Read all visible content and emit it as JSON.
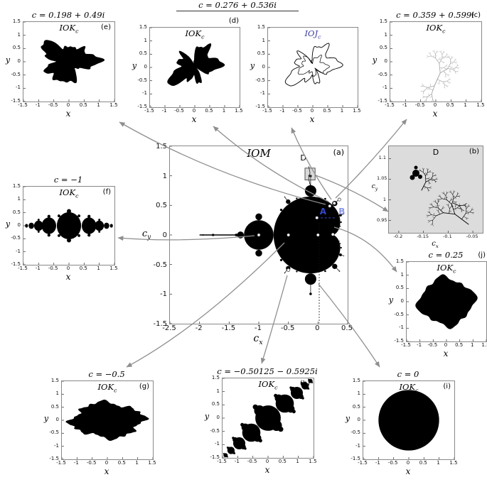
{
  "shared_title": "c = 0.276 + 0.536i",
  "colors": {
    "accent_blue": "#3748c8",
    "accent_blue_light": "#8a97e8",
    "ioj_label": "#3b3b9e",
    "arrow": "#8f8f8f",
    "dendrite_gray": "#a6a6a6",
    "panel_b_bg": "#dcdcdc",
    "set_fill": "#000000"
  },
  "chart_data": [
    {
      "id": "e",
      "type": "area",
      "title": "c = 0.198 + 0.49i",
      "set_label": "IOK_c",
      "letter": "(e)",
      "c_value": [
        0.198,
        0.49
      ],
      "xlabel": "x",
      "ylabel": "y",
      "xlim": [
        -1.5,
        1.5
      ],
      "ylim": [
        -1.5,
        1.5
      ],
      "xticks": [
        "-1.5",
        "-1",
        "-0.5",
        "0",
        "0.5",
        "1",
        "1.5"
      ],
      "yticks": [
        "1.5",
        "1",
        "0.5",
        "0",
        "-0.5",
        "-1",
        "-1.5"
      ]
    },
    {
      "id": "d",
      "type": "area",
      "title": "",
      "set_label": "IOK_c",
      "letter": "(d)",
      "c_value": [
        0.276,
        0.536
      ],
      "xlabel": "x",
      "ylabel": "y",
      "xlim": [
        -1.5,
        1.5
      ],
      "ylim": [
        -1.5,
        1.5
      ],
      "xticks": [
        "-1.5",
        "-1",
        "-0.5",
        "0",
        "0.5",
        "1",
        "1.5"
      ],
      "yticks": [
        "1.5",
        "1",
        "0.5",
        "0",
        "-0.5",
        "-1",
        "-1.5"
      ]
    },
    {
      "id": "ioj",
      "type": "area",
      "title": "",
      "set_label": "IOJ_c",
      "letter": "",
      "c_value": [
        0.276,
        0.536
      ],
      "xlabel": "x",
      "ylabel": "y",
      "xlim": [
        -1.5,
        1.5
      ],
      "ylim": [
        -1.5,
        1.5
      ],
      "xticks": [
        "-1.5",
        "-1",
        "-0.5",
        "0",
        "0.5",
        "1",
        "1.5"
      ],
      "yticks": [
        "1.5",
        "1",
        "0.5",
        "0",
        "-0.5",
        "-1",
        "-1.5"
      ]
    },
    {
      "id": "c",
      "type": "area",
      "title": "c = 0.359 + 0.599i",
      "set_label": "IOK_c",
      "letter": "(c)",
      "c_value": [
        0.359,
        0.599
      ],
      "xlabel": "x",
      "ylabel": "y",
      "xlim": [
        -1.5,
        1.5
      ],
      "ylim": [
        -1.5,
        1.5
      ],
      "xticks": [
        "-1.5",
        "-1",
        "-0.5",
        "0",
        "0.5",
        "1",
        "1.5"
      ],
      "yticks": [
        "1.5",
        "1",
        "0.5",
        "0",
        "-0.5",
        "-1",
        "-1.5"
      ]
    },
    {
      "id": "a",
      "type": "area",
      "title": "",
      "set_label": "IOM",
      "letter": "(a)",
      "xlabel": "c_x",
      "ylabel": "c_y",
      "xlim": [
        -2.5,
        0.5
      ],
      "ylim": [
        -1.5,
        1.5
      ],
      "xticks": [
        "-2.5",
        "-2",
        "-1.5",
        "-1",
        "-0.5",
        "0",
        "0.5"
      ],
      "yticks": [
        "1.5",
        "1",
        "0.5",
        "0",
        "-0.5",
        "-1",
        "-1.5"
      ],
      "region_box": {
        "label": "D",
        "x": [
          -0.22,
          -0.05
        ],
        "y": [
          0.93,
          1.13
        ]
      },
      "points": {
        "A": {
          "label": "A",
          "c": [
            -0.02,
            0.29
          ]
        },
        "B": {
          "label": "B",
          "c": [
            0.3,
            0.29
          ]
        }
      },
      "markers": [
        [
          -1,
          0
        ],
        [
          -0.5,
          0
        ],
        [
          0,
          0
        ],
        [
          0.25,
          0.01
        ],
        [
          -0.50125,
          -0.5925
        ],
        [
          0.198,
          0.49
        ],
        [
          0.276,
          0.536
        ],
        [
          0.359,
          0.599
        ],
        [
          -0.02,
          0.29
        ]
      ]
    },
    {
      "id": "b",
      "type": "area",
      "title": "",
      "set_label": "",
      "region_label": "D",
      "letter": "(b)",
      "xlabel": "c_x",
      "ylabel": "c_y",
      "xlim": [
        -0.22,
        -0.03
      ],
      "ylim": [
        0.92,
        1.13
      ],
      "xticks": [
        "-0.2",
        "-0.15",
        "-0.1",
        "-0.05"
      ],
      "yticks": [
        "1.1",
        "1.05",
        "1",
        "0.95"
      ]
    },
    {
      "id": "f",
      "type": "area",
      "title": "c = −1",
      "set_label": "IOK_c",
      "letter": "(f)",
      "c_value": [
        -1,
        0
      ],
      "xlabel": "x",
      "ylabel": "y",
      "xlim": [
        -1.5,
        1.5
      ],
      "ylim": [
        -1.5,
        1.5
      ],
      "xticks": [
        "-1.5",
        "-1",
        "-0.5",
        "0",
        "0.5",
        "1",
        "1.5"
      ],
      "yticks": [
        "1.5",
        "1",
        "0.5",
        "0",
        "-0.5",
        "-1",
        "-1.5"
      ]
    },
    {
      "id": "j",
      "type": "area",
      "title": "c = 0.25",
      "set_label": "IOK_c",
      "letter": "(j)",
      "c_value": [
        0.25,
        0
      ],
      "xlabel": "x",
      "ylabel": "y",
      "xlim": [
        -1.5,
        1.5
      ],
      "ylim": [
        -1.5,
        1.5
      ],
      "xticks": [
        "-1.5",
        "-1",
        "-0.5",
        "0",
        "0.5",
        "1",
        "1.5"
      ],
      "yticks": [
        "1.5",
        "1",
        "0.5",
        "0",
        "-0.5",
        "-1",
        "-1.5"
      ]
    },
    {
      "id": "g",
      "type": "area",
      "title": "c = −0.5",
      "set_label": "IOK_c",
      "letter": "(g)",
      "c_value": [
        -0.5,
        0
      ],
      "xlabel": "x",
      "ylabel": "y",
      "xlim": [
        -1.5,
        1.5
      ],
      "ylim": [
        -1.5,
        1.5
      ],
      "xticks": [
        "-1.5",
        "-1",
        "-0.5",
        "0",
        "0.5",
        "1",
        "1.5"
      ],
      "yticks": [
        "1.5",
        "1",
        "0.5",
        "0",
        "-0.5",
        "-1",
        "-1.5"
      ]
    },
    {
      "id": "h",
      "type": "area",
      "title": "c = −0.50125 − 0.5925i",
      "set_label": "IOK_c",
      "letter": "(h)",
      "c_value": [
        -0.50125,
        -0.5925
      ],
      "xlabel": "x",
      "ylabel": "y",
      "xlim": [
        -1.5,
        1.5
      ],
      "ylim": [
        -1.5,
        1.5
      ],
      "xticks": [
        "-1.5",
        "-1",
        "-0.5",
        "0",
        "0.5",
        "1",
        "1.5"
      ],
      "yticks": [
        "1.5",
        "1",
        "0.5",
        "0",
        "-0.5",
        "-1",
        "-1.5"
      ]
    },
    {
      "id": "i",
      "type": "area",
      "title": "c = 0",
      "set_label": "IOK_c",
      "letter": "(i)",
      "c_value": [
        0,
        0
      ],
      "xlabel": "x",
      "ylabel": "y",
      "xlim": [
        -1.5,
        1.5
      ],
      "ylim": [
        -1.5,
        1.5
      ],
      "xticks": [
        "-1.5",
        "-1",
        "-0.5",
        "0",
        "0.5",
        "1",
        "1.5"
      ],
      "yticks": [
        "1.5",
        "1",
        "0.5",
        "0",
        "-0.5",
        "-1",
        "-1.5"
      ]
    }
  ]
}
